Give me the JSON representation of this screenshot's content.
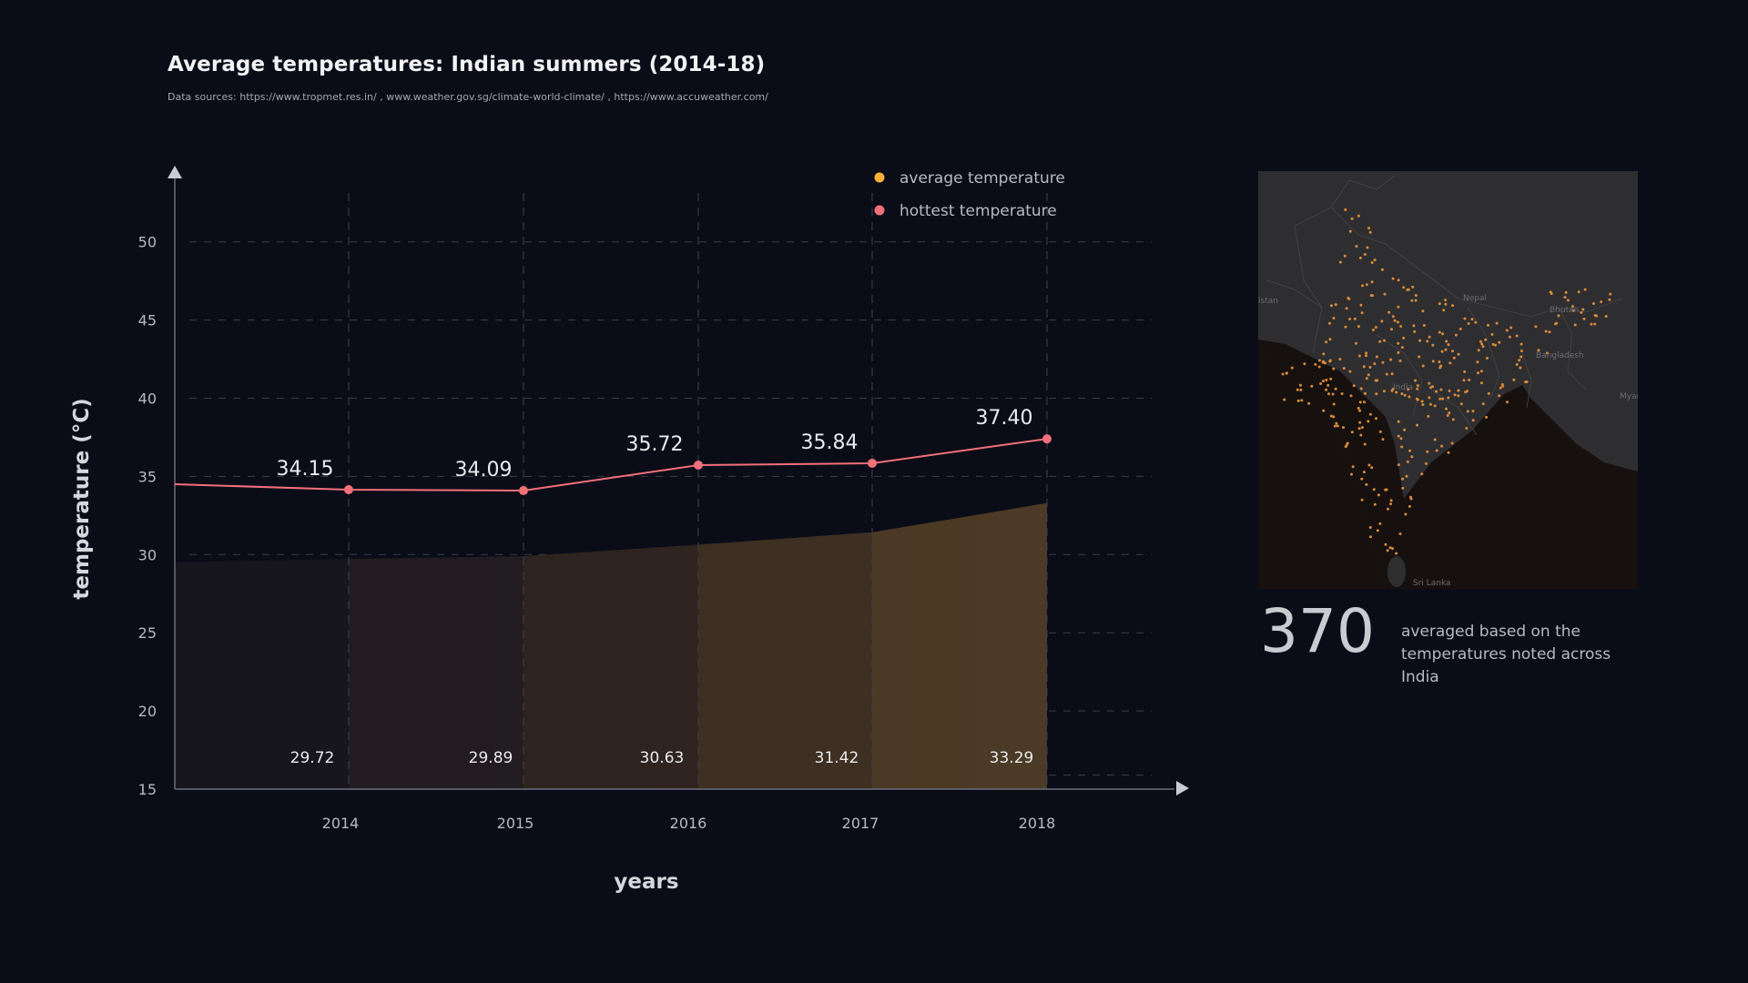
{
  "page": {
    "title": "Average temperatures: Indian summers (2014-18)",
    "subtitle": "Data sources: https://www.tropmet.res.in/ , www.weather.gov.sg/climate-world-climate/ , https://www.accuweather.com/"
  },
  "chart_data": {
    "type": "line",
    "categories": [
      "2014",
      "2015",
      "2016",
      "2017",
      "2018"
    ],
    "xlabel": "years",
    "ylabel": "temperature (°C)",
    "ylim": [
      15,
      54
    ],
    "yticks": [
      15,
      20,
      25,
      30,
      35,
      40,
      45,
      50
    ],
    "grid": true,
    "legend_position": "top-right",
    "series": [
      {
        "name": "average temperature",
        "kind": "area",
        "color": "#f5b03a",
        "start_value": 29.5,
        "values": [
          29.72,
          29.89,
          30.63,
          31.42,
          33.29
        ],
        "labels": [
          "29.72",
          "29.89",
          "30.63",
          "31.42",
          "33.29"
        ]
      },
      {
        "name": "hottest temperature",
        "kind": "line",
        "color": "#f2707a",
        "start_value": 34.5,
        "values": [
          34.15,
          34.09,
          35.72,
          35.84,
          37.4
        ],
        "labels": [
          "34.15",
          "34.09",
          "35.72",
          "35.84",
          "37.40"
        ]
      }
    ]
  },
  "map": {
    "labels": [
      "Nepal",
      "Bhutan",
      "Bangladesh",
      "India",
      "Sri Lanka",
      "Myan (Bur",
      "istan"
    ],
    "land_color": "#2e2e31",
    "water_color": "#16110f",
    "dot_color": "#d98a3a"
  },
  "stat": {
    "value": "370",
    "caption": "averaged based on the temperatures noted across India"
  }
}
